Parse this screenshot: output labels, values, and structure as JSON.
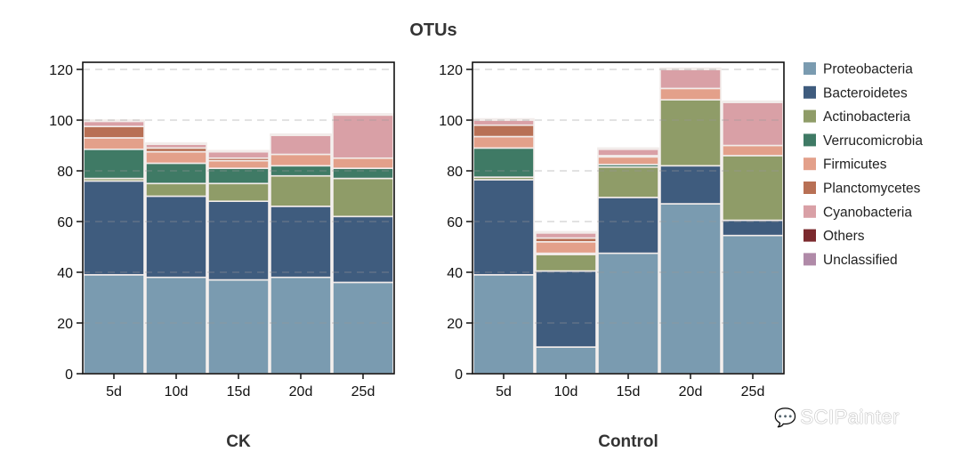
{
  "chart_data": {
    "type": "bar",
    "stacked": true,
    "title": "OTUs",
    "categories": [
      "5d",
      "10d",
      "15d",
      "20d",
      "25d"
    ],
    "ylim": [
      0,
      120
    ],
    "yticks": [
      0,
      20,
      40,
      60,
      80,
      100,
      120
    ],
    "grid": "horizontal-dashed",
    "legend_position": "right",
    "legend": [
      {
        "name": "Proteobacteria",
        "color": "#7a9bb0"
      },
      {
        "name": "Bacteroidetes",
        "color": "#3f5c7e"
      },
      {
        "name": "Actinobacteria",
        "color": "#8f9c68"
      },
      {
        "name": "Verrucomicrobia",
        "color": "#3f7a65"
      },
      {
        "name": "Firmicutes",
        "color": "#e3a08a"
      },
      {
        "name": "Planctomycetes",
        "color": "#b87055"
      },
      {
        "name": "Cyanobacteria",
        "color": "#d9a0a6"
      },
      {
        "name": "Others",
        "color": "#7b2a2e"
      },
      {
        "name": "Unclassified",
        "color": "#b08aa8"
      }
    ],
    "panels": [
      {
        "label": "CK",
        "series": [
          {
            "name": "Proteobacteria",
            "values": [
              39,
              38,
              37,
              38,
              36
            ]
          },
          {
            "name": "Bacteroidetes",
            "values": [
              37,
              32,
              31,
              28,
              26
            ]
          },
          {
            "name": "Actinobacteria",
            "values": [
              1,
              5,
              7,
              12,
              15
            ]
          },
          {
            "name": "Verrucomicrobia",
            "values": [
              11.5,
              8,
              6,
              4,
              4
            ]
          },
          {
            "name": "Firmicutes",
            "values": [
              4.5,
              4.5,
              3,
              4.5,
              4
            ]
          },
          {
            "name": "Planctomycetes",
            "values": [
              4.5,
              1.5,
              1,
              0,
              0
            ]
          },
          {
            "name": "Cyanobacteria",
            "values": [
              2,
              1.5,
              2.5,
              7.5,
              17
            ]
          },
          {
            "name": "Others",
            "values": [
              0,
              0,
              0,
              0,
              0
            ]
          },
          {
            "name": "Unclassified",
            "values": [
              0.5,
              0.5,
              0.5,
              0.5,
              0.5
            ]
          }
        ]
      },
      {
        "label": "Control",
        "series": [
          {
            "name": "Proteobacteria",
            "values": [
              39,
              10.5,
              47.5,
              67,
              54.5
            ]
          },
          {
            "name": "Bacteroidetes",
            "values": [
              37.5,
              30,
              22,
              15,
              6
            ]
          },
          {
            "name": "Actinobacteria",
            "values": [
              1,
              6.5,
              12,
              26,
              25.5
            ]
          },
          {
            "name": "Verrucomicrobia",
            "values": [
              11.5,
              0.5,
              1,
              0,
              0
            ]
          },
          {
            "name": "Firmicutes",
            "values": [
              4.5,
              4.5,
              3,
              4.5,
              4
            ]
          },
          {
            "name": "Planctomycetes",
            "values": [
              4.5,
              1.5,
              0.5,
              0,
              0
            ]
          },
          {
            "name": "Cyanobacteria",
            "values": [
              2,
              2,
              2.5,
              7.5,
              17
            ]
          },
          {
            "name": "Others",
            "values": [
              0,
              0,
              0,
              0,
              0
            ]
          },
          {
            "name": "Unclassified",
            "values": [
              0.5,
              0.5,
              0.5,
              0.5,
              0.5
            ]
          }
        ]
      }
    ]
  },
  "watermark": {
    "text": "SCIPainter",
    "icon": "wechat-icon"
  }
}
